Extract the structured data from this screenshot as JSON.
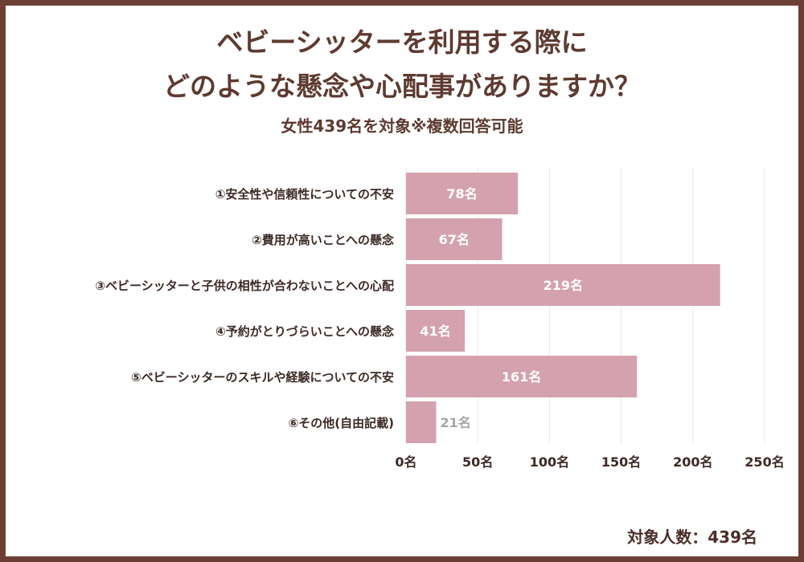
{
  "title_line1": "ベビーシッターを利用する際に",
  "title_line2": "どのような懸念や心配事がありますか？",
  "subtitle": "女性439名を対象※複数回答可能",
  "note": "対象人数：439名",
  "colors": {
    "bar": "#d4a1ae",
    "text_dark": "#3d2a26",
    "label_inside": "#ffffff",
    "label_outside": "#a6a6a6",
    "grid": "#e6e6e6",
    "border": "#6b3f36"
  },
  "chart_data": {
    "type": "bar",
    "orientation": "horizontal",
    "categories": [
      "①安全性や信頼性についての不安",
      "②費用が高いことへの懸念",
      "③ベビーシッターと子供の相性が合わないことへの心配",
      "④予約がとりづらいことへの懸念",
      "⑤ベビーシッターのスキルや経験についての不安",
      "⑥その他(自由記載)"
    ],
    "values": [
      78,
      67,
      219,
      41,
      161,
      21
    ],
    "data_labels": [
      "78名",
      "67名",
      "219名",
      "41名",
      "161名",
      "21名"
    ],
    "xticks": [
      0,
      50,
      100,
      150,
      200,
      250
    ],
    "xtick_labels": [
      "0名",
      "50名",
      "100名",
      "150名",
      "200名",
      "250名"
    ],
    "xlim": [
      0,
      250
    ],
    "grid": true,
    "title": "",
    "xlabel": "",
    "ylabel": ""
  }
}
